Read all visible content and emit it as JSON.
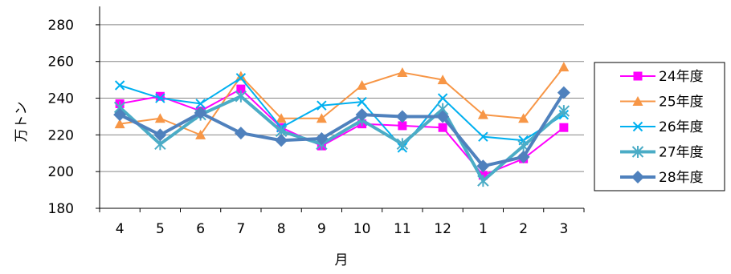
{
  "chart_data": {
    "type": "line",
    "title": "",
    "xlabel": "月",
    "ylabel": "万トン",
    "categories": [
      "4",
      "5",
      "6",
      "7",
      "8",
      "9",
      "10",
      "11",
      "12",
      "1",
      "2",
      "3"
    ],
    "ylim": [
      180,
      290
    ],
    "yticks": [
      180,
      200,
      220,
      240,
      260,
      280
    ],
    "grid": true,
    "legend_position": "right",
    "series": [
      {
        "name": "24年度",
        "color": "#FF00FF",
        "marker": "square",
        "values": [
          237,
          241,
          233,
          245,
          224,
          214,
          226,
          225,
          224,
          198,
          207,
          224
        ]
      },
      {
        "name": "25年度",
        "color": "#F79646",
        "marker": "triangle",
        "values": [
          226,
          229,
          220,
          252,
          229,
          229,
          247,
          254,
          250,
          231,
          229,
          257
        ]
      },
      {
        "name": "26年度",
        "color": "#00B0F0",
        "marker": "x",
        "values": [
          247,
          240,
          237,
          251,
          224,
          236,
          238,
          213,
          240,
          219,
          217,
          231
        ]
      },
      {
        "name": "27年度",
        "color": "#4BACC6",
        "marker": "asterisk",
        "values": [
          235,
          215,
          231,
          241,
          222,
          215,
          228,
          215,
          234,
          195,
          214,
          233
        ]
      },
      {
        "name": "28年度",
        "color": "#4F81BD",
        "marker": "diamond",
        "values": [
          231,
          220,
          232,
          221,
          217,
          218,
          231,
          230,
          230,
          203,
          208,
          243
        ]
      }
    ]
  }
}
